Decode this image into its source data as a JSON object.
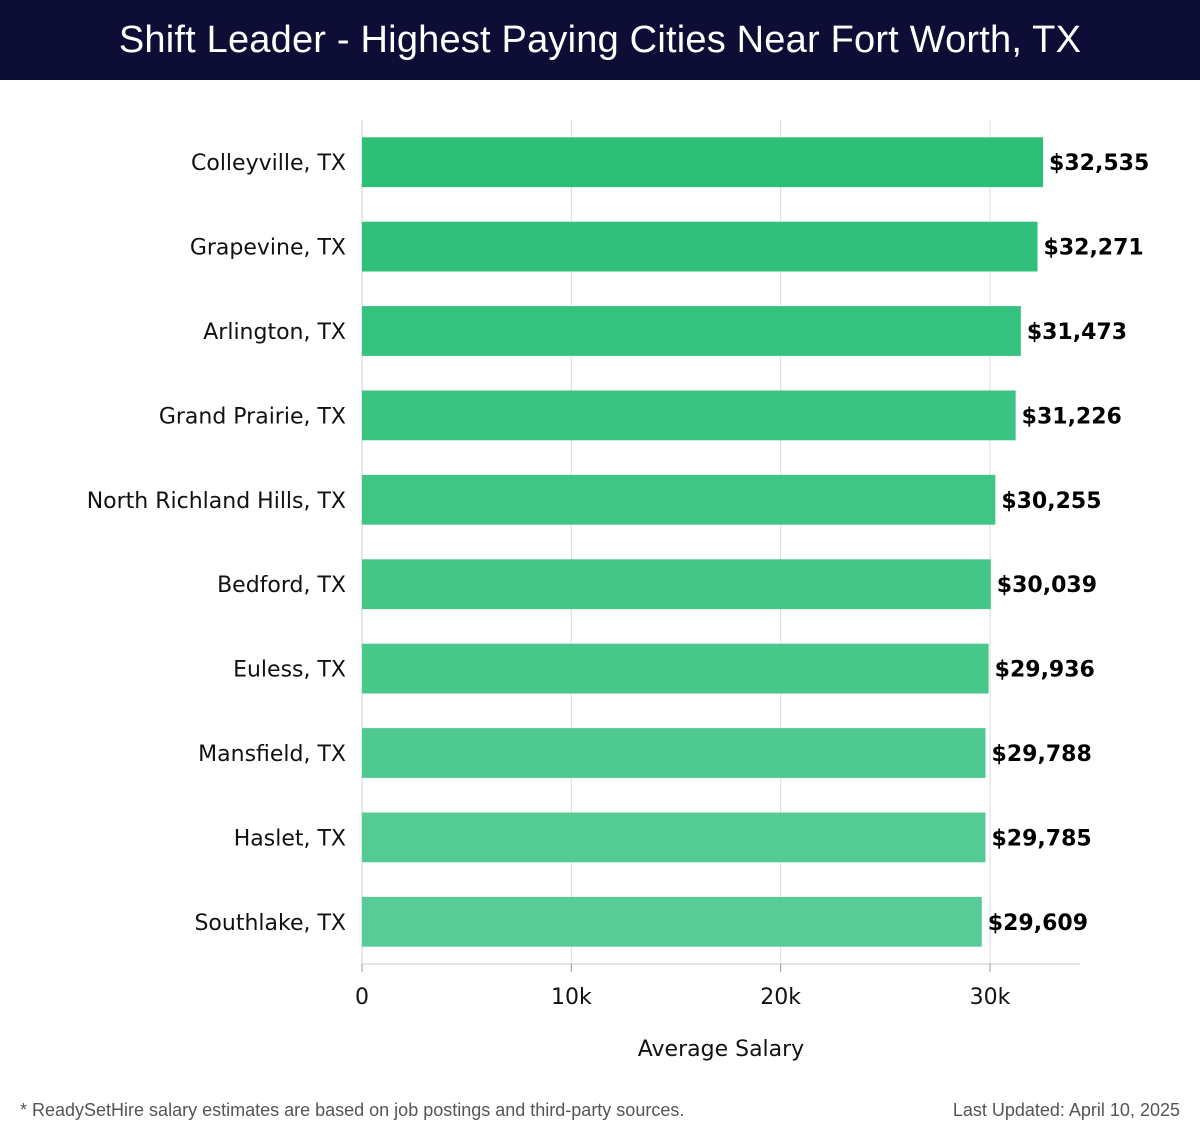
{
  "header": {
    "title": "Shift Leader - Highest Paying Cities Near Fort Worth, TX"
  },
  "colors": {
    "header_bg": "#0d0d35",
    "bar_top": "#2bbf78",
    "bar_bottom": "#58cc96",
    "grid": "#dddddd"
  },
  "chart_data": {
    "type": "bar",
    "orientation": "horizontal",
    "title": "Shift Leader - Highest Paying Cities Near Fort Worth, TX",
    "xlabel": "Average Salary",
    "ylabel": "",
    "xlim": [
      0,
      34300
    ],
    "xticks": [
      0,
      10000,
      20000,
      30000
    ],
    "xtick_labels": [
      "0",
      "10k",
      "20k",
      "30k"
    ],
    "grid": true,
    "categories": [
      "Colleyville, TX",
      "Grapevine, TX",
      "Arlington, TX",
      "Grand Prairie, TX",
      "North Richland Hills, TX",
      "Bedford, TX",
      "Euless, TX",
      "Mansfield, TX",
      "Haslet, TX",
      "Southlake, TX"
    ],
    "values": [
      32535,
      32271,
      31473,
      31226,
      30255,
      30039,
      29936,
      29788,
      29785,
      29609
    ],
    "value_labels": [
      "$32,535",
      "$32,271",
      "$31,473",
      "$31,226",
      "$30,255",
      "$30,039",
      "$29,936",
      "$29,788",
      "$29,785",
      "$29,609"
    ]
  },
  "footer": {
    "note": "* ReadySetHire salary estimates are based on job postings and third-party sources.",
    "updated": "Last Updated: April 10, 2025"
  }
}
